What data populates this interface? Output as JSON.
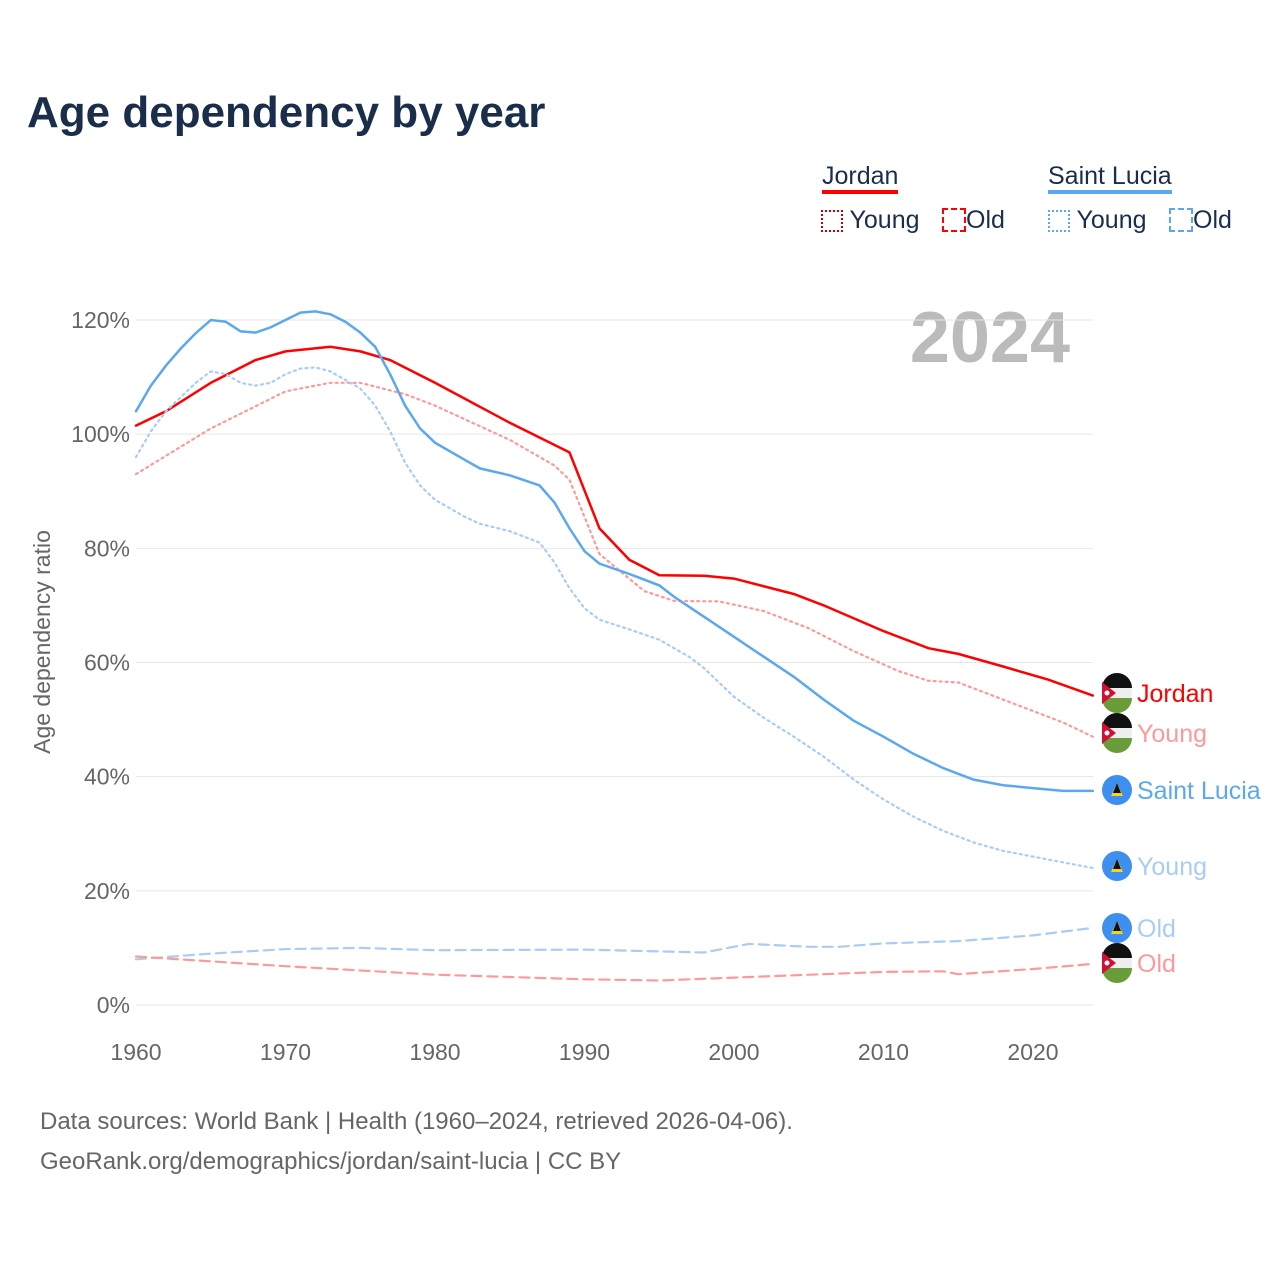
{
  "title": "Age dependency by year",
  "legend": {
    "groups": [
      {
        "country": "Jordan",
        "color": "#ff0000",
        "light": "#ff9999",
        "young": "Young",
        "old": "Old"
      },
      {
        "country": "Saint Lucia",
        "color": "#5ca8ee",
        "light": "#a8cdf5",
        "young": "Young",
        "old": "Old"
      }
    ]
  },
  "year_label": "2024",
  "footer": {
    "line1": "Data sources: World Bank | Health (1960–2024, retrieved 2026-04-06).",
    "line2": "GeoRank.org/demographics/jordan/saint-lucia | CC BY"
  },
  "chart_data": {
    "type": "line",
    "title": "Age dependency by year",
    "xlabel": "",
    "ylabel": "Age dependency ratio",
    "xlim": [
      1960,
      2024
    ],
    "ylim": [
      0,
      125
    ],
    "xticks": [
      "1960",
      "1970",
      "1980",
      "1990",
      "2000",
      "2010",
      "2020"
    ],
    "yticks": [
      "0%",
      "20%",
      "40%",
      "60%",
      "80%",
      "100%",
      "120%"
    ],
    "grid": true,
    "series": [
      {
        "name": "Jordan",
        "end_label": "Jordan",
        "color": "#ff0000",
        "style": "solid",
        "x": [
          1960,
          1962,
          1965,
          1968,
          1970,
          1973,
          1975,
          1977,
          1980,
          1985,
          1989,
          1991,
          1993,
          1995,
          1998,
          2000,
          2004,
          2006,
          2010,
          2013,
          2015,
          2018,
          2021,
          2024
        ],
        "y": [
          101.5,
          104,
          109,
          113,
          114.5,
          115.3,
          114.5,
          113,
          109,
          102,
          96.8,
          83.5,
          78,
          75.3,
          75.2,
          74.7,
          72,
          70,
          65.5,
          62.5,
          61.5,
          59.3,
          57,
          54.2
        ]
      },
      {
        "name": "Jordan Young",
        "end_label": "Young",
        "color": "#ff9999",
        "style": "dotted",
        "x": [
          1960,
          1965,
          1970,
          1973,
          1975,
          1978,
          1980,
          1985,
          1988,
          1989,
          1991,
          1994,
          1996,
          1999,
          2002,
          2005,
          2008,
          2011,
          2013,
          2015,
          2018,
          2022,
          2024
        ],
        "y": [
          93,
          101,
          107.5,
          109,
          109,
          107,
          105,
          99,
          94.5,
          92,
          79,
          72.5,
          70.8,
          70.7,
          69,
          66,
          62,
          58.5,
          56.8,
          56.5,
          53.5,
          49.5,
          47
        ]
      },
      {
        "name": "Saint Lucia",
        "end_label": "Saint Lucia",
        "color": "#5ca8ee",
        "style": "solid",
        "x": [
          1960,
          1961,
          1962,
          1963,
          1964,
          1965,
          1966,
          1967,
          1968,
          1969,
          1970,
          1971,
          1972,
          1973,
          1974,
          1975,
          1976,
          1977,
          1978,
          1979,
          1980,
          1982,
          1983,
          1985,
          1987,
          1988,
          1989,
          1990,
          1991,
          1993,
          1995,
          1996,
          1998,
          2000,
          2002,
          2004,
          2006,
          2008,
          2010,
          2012,
          2014,
          2016,
          2018,
          2020,
          2022,
          2024
        ],
        "y": [
          104,
          108.5,
          112,
          115,
          117.7,
          120,
          119.7,
          118,
          117.8,
          118.7,
          120,
          121.3,
          121.5,
          121,
          119.7,
          117.8,
          115.3,
          110.5,
          105,
          101,
          98.5,
          95.5,
          94,
          92.8,
          91,
          88,
          83.5,
          79.5,
          77.3,
          75.5,
          73.5,
          71.5,
          68,
          64.5,
          61,
          57.5,
          53.5,
          49.8,
          47,
          44,
          41.5,
          39.5,
          38.5,
          38,
          37.5,
          37.5
        ]
      },
      {
        "name": "Saint Lucia Young",
        "end_label": "Young",
        "color": "#a8cdf5",
        "style": "dotted",
        "x": [
          1960,
          1961,
          1962,
          1963,
          1964,
          1965,
          1966,
          1967,
          1968,
          1969,
          1970,
          1971,
          1972,
          1973,
          1974,
          1975,
          1976,
          1977,
          1978,
          1979,
          1980,
          1982,
          1983,
          1985,
          1987,
          1988,
          1989,
          1990,
          1991,
          1993,
          1995,
          1997,
          1998,
          2000,
          2002,
          2004,
          2006,
          2008,
          2010,
          2012,
          2014,
          2016,
          2018,
          2020,
          2022,
          2024
        ],
        "y": [
          96,
          100.5,
          104,
          106.5,
          109,
          111,
          110.5,
          109,
          108.5,
          109,
          110.5,
          111.5,
          111.7,
          111,
          109.5,
          108,
          105,
          100.5,
          95,
          91,
          88.5,
          85.5,
          84.3,
          83,
          81,
          77.5,
          73,
          69.5,
          67.5,
          65.8,
          64,
          61,
          59,
          54,
          50.3,
          47,
          43.5,
          39.5,
          36,
          33,
          30.5,
          28.5,
          27,
          26,
          25,
          24
        ]
      },
      {
        "name": "Saint Lucia Old",
        "end_label": "Old",
        "color": "#a8cdf5",
        "style": "dashed",
        "x": [
          1960,
          1965,
          1970,
          1975,
          1980,
          1990,
          1998,
          2001,
          2005,
          2007,
          2010,
          2015,
          2020,
          2024
        ],
        "y": [
          8,
          9,
          9.8,
          10,
          9.6,
          9.7,
          9.2,
          10.7,
          10.2,
          10.2,
          10.8,
          11.2,
          12.2,
          13.5
        ]
      },
      {
        "name": "Jordan Old",
        "end_label": "Old",
        "color": "#ff9999",
        "style": "dashed",
        "x": [
          1960,
          1970,
          1980,
          1990,
          1995,
          2000,
          2010,
          2014,
          2015,
          2020,
          2024
        ],
        "y": [
          8.5,
          6.8,
          5.3,
          4.5,
          4.3,
          4.8,
          5.8,
          5.9,
          5.4,
          6.3,
          7.2
        ]
      }
    ]
  }
}
